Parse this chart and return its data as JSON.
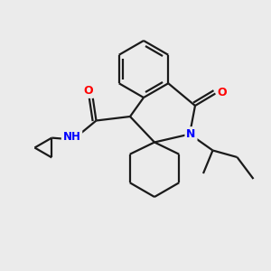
{
  "background_color": "#ebebeb",
  "bond_color": "#1a1a1a",
  "atom_colors": {
    "N": "#0000FF",
    "O": "#FF0000",
    "H": "#5faaaa",
    "C": "#1a1a1a"
  },
  "figsize": [
    3.0,
    3.0
  ],
  "dpi": 100,
  "xlim": [
    0,
    10
  ],
  "ylim": [
    0,
    10
  ]
}
